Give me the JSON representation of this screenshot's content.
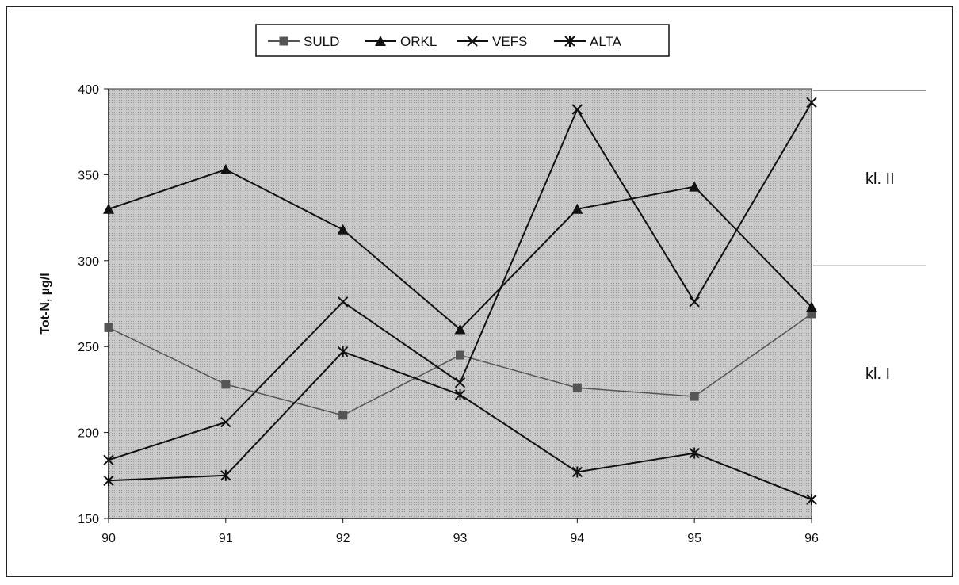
{
  "chart_data": {
    "type": "line",
    "title": "",
    "xlabel": "",
    "ylabel": "Tot-N, µg/l",
    "categories": [
      "90",
      "91",
      "92",
      "93",
      "94",
      "95",
      "96"
    ],
    "ylim": [
      150,
      400
    ],
    "yticks": [
      150,
      200,
      250,
      300,
      350,
      400
    ],
    "grid": false,
    "legend_position": "top-center",
    "plot_background": "#c9c9c9",
    "series": [
      {
        "name": "SULD",
        "marker": "square",
        "color": "#555555",
        "values": [
          261,
          228,
          210,
          245,
          226,
          221,
          269
        ]
      },
      {
        "name": "ORKL",
        "marker": "triangle",
        "color": "#111111",
        "values": [
          330,
          353,
          318,
          260,
          330,
          343,
          273
        ]
      },
      {
        "name": "VEFS",
        "marker": "x",
        "color": "#111111",
        "values": [
          184,
          206,
          276,
          229,
          388,
          276,
          392
        ]
      },
      {
        "name": "ALTA",
        "marker": "star",
        "color": "#111111",
        "values": [
          172,
          175,
          247,
          222,
          177,
          188,
          161
        ]
      }
    ],
    "bands": [
      {
        "label": "kl. II",
        "from": 297,
        "to": 399
      },
      {
        "label": "kl. I",
        "from": 150,
        "to": 297
      }
    ]
  }
}
